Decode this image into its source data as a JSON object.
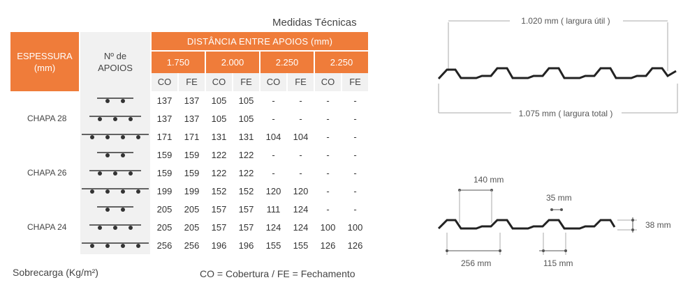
{
  "title": "Medidas Técnicas",
  "header": {
    "espessura": "ESPESSURA (mm)",
    "apoios": "Nº de APOIOS",
    "distancia": "DISTÂNCIA ENTRE APOIOS (mm)",
    "spans": [
      "1.750",
      "2.000",
      "2.250",
      "2.250"
    ],
    "sub": [
      "CO",
      "FE",
      "CO",
      "FE",
      "CO",
      "FE",
      "CO",
      "FE"
    ]
  },
  "rows": [
    {
      "supports": 2,
      "values": [
        "137",
        "137",
        "105",
        "105",
        "-",
        "-",
        "-",
        "-"
      ]
    },
    {
      "supports": 3,
      "values": [
        "137",
        "137",
        "105",
        "105",
        "-",
        "-",
        "-",
        "-"
      ]
    },
    {
      "supports": 4,
      "values": [
        "171",
        "171",
        "131",
        "131",
        "104",
        "104",
        "-",
        "-"
      ]
    },
    {
      "supports": 2,
      "values": [
        "159",
        "159",
        "122",
        "122",
        "-",
        "-",
        "-",
        "-"
      ]
    },
    {
      "supports": 3,
      "values": [
        "159",
        "159",
        "122",
        "122",
        "-",
        "-",
        "-",
        "-"
      ]
    },
    {
      "supports": 4,
      "values": [
        "199",
        "199",
        "152",
        "152",
        "120",
        "120",
        "-",
        "-"
      ]
    },
    {
      "supports": 2,
      "values": [
        "205",
        "205",
        "157",
        "157",
        "111",
        "124",
        "-",
        "-"
      ]
    },
    {
      "supports": 3,
      "values": [
        "205",
        "205",
        "157",
        "157",
        "124",
        "124",
        "100",
        "100"
      ]
    },
    {
      "supports": 4,
      "values": [
        "256",
        "256",
        "196",
        "196",
        "155",
        "155",
        "126",
        "126"
      ]
    }
  ],
  "groups": [
    "CHAPA 28",
    "CHAPA 26",
    "CHAPA 24"
  ],
  "footer": {
    "sobrecarga": "Sobrecarga (Kg/m²)",
    "legend": "CO  =  Cobertura / FE = Fechamento"
  },
  "diagram": {
    "largura_util": "1.020 mm ( largura útil )",
    "largura_total": "1.075 mm ( largura total )",
    "d140": "140 mm",
    "d35": "35 mm",
    "d38": "38 mm",
    "d256": "256 mm",
    "d115": "115 mm"
  },
  "colors": {
    "accent": "#ef7c3a",
    "cell_bg": "#f1f1f1",
    "line": "#222222"
  }
}
